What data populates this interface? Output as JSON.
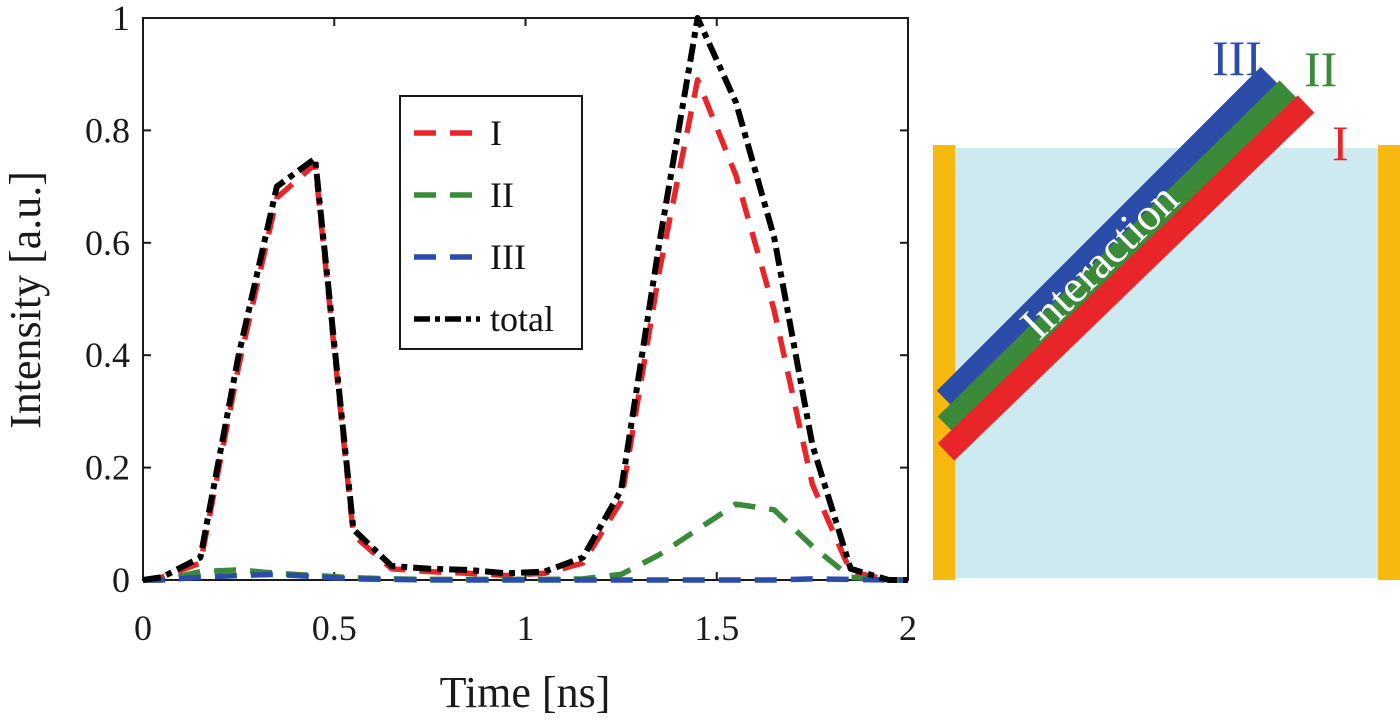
{
  "chart_data": {
    "type": "line",
    "xlabel": "Time [ns]",
    "ylabel": "Intensity [a.u.]",
    "xlim": [
      0,
      2
    ],
    "ylim": [
      0,
      1
    ],
    "xticks": [
      "0",
      "0.5",
      "1",
      "1.5",
      "2"
    ],
    "yticks": [
      "0",
      "0.2",
      "0.4",
      "0.6",
      "0.8",
      "1"
    ],
    "x": [
      0,
      0.05,
      0.15,
      0.25,
      0.35,
      0.45,
      0.55,
      0.65,
      0.75,
      0.85,
      0.95,
      1.05,
      1.15,
      1.25,
      1.35,
      1.45,
      1.55,
      1.65,
      1.75,
      1.85,
      1.95,
      2.0
    ],
    "legend_position": "top-center",
    "series": [
      {
        "name": "I",
        "color": "#e8262a",
        "dash": "dashed",
        "values": [
          0,
          0.005,
          0.03,
          0.38,
          0.68,
          0.74,
          0.08,
          0.02,
          0.015,
          0.012,
          0.008,
          0.012,
          0.03,
          0.14,
          0.55,
          0.89,
          0.72,
          0.48,
          0.17,
          0.015,
          0.0,
          0.0
        ]
      },
      {
        "name": "II",
        "color": "#3a8a3a",
        "dash": "dashed",
        "values": [
          0,
          0,
          0.015,
          0.018,
          0.012,
          0.008,
          0.004,
          0.002,
          0.001,
          0.001,
          0.001,
          0.001,
          0.002,
          0.01,
          0.045,
          0.09,
          0.135,
          0.125,
          0.06,
          0.005,
          0.0,
          0.0
        ]
      },
      {
        "name": "III",
        "color": "#2b4ca8",
        "dash": "dashed",
        "values": [
          0,
          0,
          0.005,
          0.008,
          0.01,
          0.006,
          0.002,
          0.001,
          0.0,
          0.0,
          0.0,
          0.0,
          0.0,
          0.0,
          0.0,
          0.0,
          0.0,
          0.0,
          0.002,
          0.001,
          0.0,
          0.0
        ]
      },
      {
        "name": "total",
        "color": "#000000",
        "dash": "dashdot",
        "values": [
          0,
          0.005,
          0.04,
          0.4,
          0.7,
          0.75,
          0.09,
          0.025,
          0.02,
          0.018,
          0.012,
          0.015,
          0.04,
          0.16,
          0.6,
          1.0,
          0.85,
          0.61,
          0.24,
          0.02,
          0.0,
          0.0
        ]
      }
    ]
  },
  "diagram": {
    "band_text": "Interaction",
    "labels": [
      "III",
      "II",
      "I"
    ],
    "colors": {
      "I": "#e8262a",
      "II": "#3a8a3a",
      "III": "#2b4ca8",
      "mirror": "#f7b90f",
      "medium": "#cdeaf0"
    }
  }
}
